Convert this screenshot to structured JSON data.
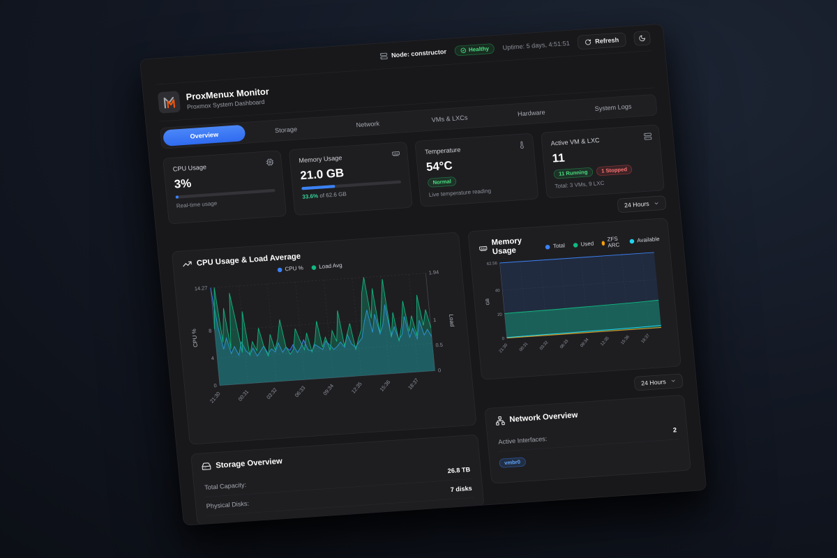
{
  "topbar": {
    "node_label": "Node: constructor",
    "health_badge": "Healthy",
    "uptime": "Uptime: 5 days, 4:51:51",
    "refresh_label": "Refresh"
  },
  "header": {
    "title": "ProxMenux Monitor",
    "subtitle": "Proxmox System Dashboard"
  },
  "tabs": [
    {
      "label": "Overview",
      "active": true
    },
    {
      "label": "Storage",
      "active": false
    },
    {
      "label": "Network",
      "active": false
    },
    {
      "label": "VMs & LXCs",
      "active": false
    },
    {
      "label": "Hardware",
      "active": false
    },
    {
      "label": "System Logs",
      "active": false
    }
  ],
  "stats": {
    "cpu": {
      "title": "CPU Usage",
      "value": "3%",
      "percent": 3,
      "subtitle": "Real-time usage"
    },
    "memory": {
      "title": "Memory Usage",
      "value": "21.0 GB",
      "percent": 33.6,
      "used_pct": "33.6%",
      "of_text": " of 62.6 GB"
    },
    "temperature": {
      "title": "Temperature",
      "value": "54°C",
      "badge": "Normal",
      "subtitle": "Live temperature reading"
    },
    "vms": {
      "title": "Active VM & LXC",
      "value": "11",
      "running": "11 Running",
      "stopped": "1 Stopped",
      "total": "Total: 3 VMs, 9 LXC"
    }
  },
  "time_range": {
    "value": "24 Hours"
  },
  "storage": {
    "title": "Storage Overview",
    "rows": [
      {
        "label": "Total Capacity:",
        "value": "26.8 TB"
      },
      {
        "label": "Physical Disks:",
        "value": "7 disks"
      }
    ]
  },
  "network": {
    "title": "Network Overview",
    "interfaces_label": "Active Interfaces:",
    "interfaces_value": "2",
    "badge": "vmbr0"
  },
  "icons": {
    "node": "server-icon",
    "health": "check-circle-icon",
    "refresh": "rotate-cw-icon",
    "theme": "moon-icon",
    "cpu": "cpu-chip-icon",
    "memory": "ram-stick-icon",
    "temperature": "thermometer-icon",
    "vms": "server-icon",
    "cpu_chart": "trending-up-icon",
    "storage": "hard-drive-icon",
    "network": "network-nodes-icon",
    "select": "chevron-down-icon"
  },
  "colors": {
    "accent": "#3b82f6",
    "ok": "#22c55e",
    "error": "#ef4444",
    "cyan": "#22d3ee",
    "orange": "#f59e0b",
    "teal": "#10b981"
  },
  "chart_data": [
    {
      "type": "line",
      "title": "CPU Usage & Load Average",
      "x_ticks": [
        "21:30",
        "00:31",
        "03:32",
        "06:33",
        "09:34",
        "12:35",
        "15:36",
        "18:37"
      ],
      "left_axis": {
        "label": "CPU %",
        "ticks": [
          0,
          4,
          8,
          14.27
        ],
        "max": 14.27
      },
      "right_axis": {
        "label": "Load",
        "ticks": [
          0,
          0.5,
          1,
          1.94
        ],
        "max": 1.94
      },
      "series": [
        {
          "name": "CPU %",
          "color": "#3b82f6",
          "fill": "rgba(59,130,246,0.25)",
          "axis": "left",
          "values": [
            14.27,
            8.5,
            5.2,
            6.8,
            4.5,
            5.5,
            4.2,
            6.1,
            4.8,
            4.2,
            5.1,
            3.9,
            4.6,
            5.3,
            4.1,
            4.8,
            4.3,
            5.6,
            4.2,
            4.9,
            4.4,
            5.2,
            4.0,
            4.7,
            5.8,
            4.3,
            4.1,
            5.0,
            4.6,
            4.2,
            5.4,
            4.8,
            4.1,
            4.5,
            5.1,
            4.3,
            6.2,
            4.7,
            4.2,
            4.9,
            5.5,
            7.8,
            9.5,
            6.2,
            8.8,
            5.9,
            7.2,
            10.1,
            5.4,
            6.8,
            4.9,
            5.6,
            8.2,
            5.1,
            6.4,
            4.8,
            7.5,
            5.3,
            6.1,
            5.0
          ]
        },
        {
          "name": "Load Avg",
          "color": "#10b981",
          "fill": "rgba(16,185,129,0.3)",
          "axis": "right",
          "values": [
            1.12,
            1.94,
            0.85,
            1.52,
            0.71,
            1.81,
            1.24,
            0.62,
            1.43,
            0.55,
            0.82,
            0.64,
            1.08,
            0.72,
            0.51,
            0.94,
            0.63,
            0.85,
            1.22,
            0.68,
            0.52,
            0.61,
            1.02,
            0.78,
            0.59,
            0.92,
            0.54,
            0.73,
            1.14,
            0.62,
            0.81,
            0.55,
            0.93,
            0.71,
            1.32,
            0.61,
            0.84,
            1.05,
            0.52,
            0.74,
            0.91,
            1.62,
            1.94,
            1.12,
            1.71,
            0.82,
            1.33,
            1.88,
            0.72,
            1.21,
            0.63,
            0.92,
            1.42,
            0.81,
            1.12,
            0.71,
            1.52,
            0.91,
            1.22,
            0.85
          ]
        }
      ]
    },
    {
      "type": "area",
      "title": "Memory Usage",
      "x_ticks": [
        "21:30",
        "00:31",
        "03:32",
        "06:33",
        "09:34",
        "12:35",
        "15:36",
        "18:37"
      ],
      "y_axis": {
        "label": "GB",
        "ticks": [
          0,
          20,
          40,
          62.56
        ],
        "max": 62.56
      },
      "series": [
        {
          "name": "Total",
          "color": "#3b82f6",
          "fill": "rgba(59,130,246,0.14)",
          "values": [
            62.56,
            62.56,
            62.56,
            62.56,
            62.56,
            62.56,
            62.56,
            62.56,
            62.56,
            62.56,
            62.56,
            62.56,
            62.56
          ]
        },
        {
          "name": "Used",
          "color": "#10b981",
          "fill": "rgba(16,185,129,0.38)",
          "values": [
            20.6,
            20.8,
            20.9,
            21.0,
            21.1,
            21.3,
            21.5,
            21.7,
            21.9,
            22.1,
            22.3,
            22.6,
            23.0
          ]
        },
        {
          "name": "ZFS ARC",
          "color": "#f59e0b",
          "fill": "none",
          "values": [
            0.3,
            0.3,
            0.3,
            0.3,
            0.3,
            0.3,
            0.3,
            0.3,
            0.3,
            0.3,
            0.3,
            0.3,
            0.3
          ]
        },
        {
          "name": "Available",
          "color": "#22d3ee",
          "fill": "none",
          "values": [
            0.7,
            0.8,
            0.9,
            1.0,
            1.0,
            1.1,
            1.2,
            1.3,
            1.4,
            1.5,
            1.6,
            1.8,
            2.0
          ]
        }
      ]
    }
  ]
}
